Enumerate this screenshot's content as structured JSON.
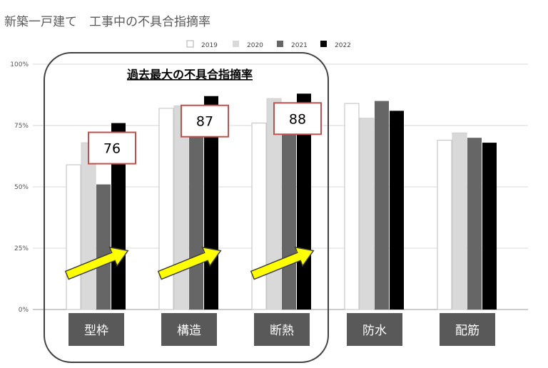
{
  "chart_data": {
    "type": "bar",
    "title": "新築一戸建て　工事中の不具合指摘率",
    "categories": [
      "型枠",
      "構造",
      "断熱",
      "防水",
      "配筋"
    ],
    "series": [
      {
        "name": "2019",
        "values": [
          59,
          82,
          76,
          84,
          69
        ],
        "color": "#ffffff"
      },
      {
        "name": "2020",
        "values": [
          68,
          83,
          86,
          78,
          72
        ],
        "color": "#d9d9d9"
      },
      {
        "name": "2021",
        "values": [
          51,
          83,
          84,
          85,
          70
        ],
        "color": "#666666"
      },
      {
        "name": "2022",
        "values": [
          76,
          87,
          88,
          81,
          68
        ],
        "color": "#000000"
      }
    ],
    "ylim": [
      0,
      100
    ],
    "yticks": [
      "0%",
      "25%",
      "50%",
      "75%",
      "100%"
    ],
    "xlabel": "",
    "ylabel": "",
    "grid": true,
    "legend_position": "top",
    "annotations": {
      "highlight_title": "過去最大の不具合指摘率",
      "callouts": [
        {
          "category": "型枠",
          "value": "76"
        },
        {
          "category": "構造",
          "value": "87"
        },
        {
          "category": "断熱",
          "value": "88"
        }
      ],
      "highlighted_categories": [
        "型枠",
        "構造",
        "断熱"
      ]
    },
    "colors": {
      "category_label_bg": "#595959",
      "category_label_text": "#ffffff",
      "callout_border": "#c0504d",
      "arrow_fill": "#ffff00",
      "arrow_stroke": "#404040",
      "highlight_box": "#404040"
    }
  }
}
